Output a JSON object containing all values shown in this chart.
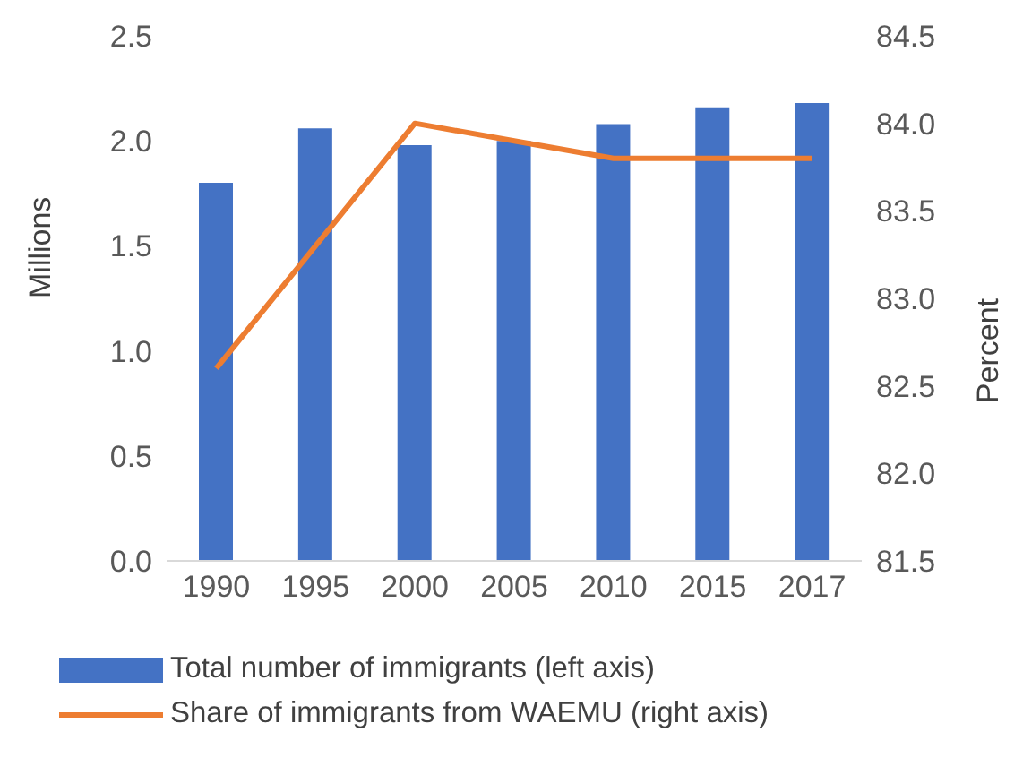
{
  "chart_data": {
    "type": "bar",
    "categories": [
      "1990",
      "1995",
      "2000",
      "2005",
      "2010",
      "2015",
      "2017"
    ],
    "ylabel": "Millions",
    "y2label": "Percent",
    "series": [
      {
        "name": "Total number of immigrants (left axis)",
        "color": "#4472c4",
        "values": [
          1.8,
          2.06,
          1.98,
          2.0,
          2.08,
          2.16,
          2.18
        ]
      },
      {
        "name": "Share of immigrants from WAEMU (right axis)",
        "type": "line",
        "axis": "y2",
        "color": "#ed7d31",
        "values": [
          82.6,
          83.3,
          84.0,
          83.9,
          83.8,
          83.8,
          83.8
        ]
      }
    ],
    "ylim": [
      0,
      2.5
    ],
    "yticks": [
      {
        "value": 0,
        "label": "0.0"
      },
      {
        "value": 0.5,
        "label": "0.5"
      },
      {
        "value": 1,
        "label": "1.0"
      },
      {
        "value": 1.5,
        "label": "1.5"
      },
      {
        "value": 2,
        "label": "2.0"
      },
      {
        "value": 2.5,
        "label": "2.5"
      }
    ],
    "y2lim": [
      81.5,
      84.5
    ],
    "y2ticks": [
      81.5,
      {
        "value": 82,
        "label": "82.0"
      },
      82.5,
      {
        "value": 83,
        "label": "83.0"
      },
      83.5,
      {
        "value": 84,
        "label": "84.0"
      },
      84.5
    ],
    "grid": false,
    "legend": "bottom",
    "marker": "none"
  }
}
